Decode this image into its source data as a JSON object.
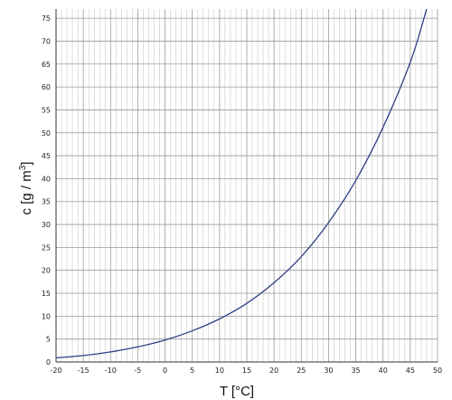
{
  "chart_data": {
    "type": "line",
    "title": "",
    "xlabel": "T [°C]",
    "ylabel_base": "c [g / m",
    "ylabel_sup": "3",
    "ylabel_close": "]",
    "xlim": [
      -20,
      50
    ],
    "ylim": [
      0,
      77
    ],
    "x_ticks": [
      -20,
      -15,
      -10,
      -5,
      0,
      5,
      10,
      15,
      20,
      25,
      30,
      35,
      40,
      45,
      50
    ],
    "y_ticks": [
      0,
      5,
      10,
      15,
      20,
      25,
      30,
      35,
      40,
      45,
      50,
      55,
      60,
      65,
      70,
      75
    ],
    "grid": true,
    "legend": "none",
    "colors": {
      "line": "#2f3f86",
      "grid_major": "#9a9a9a",
      "grid_minor": "#c8c8c8",
      "axis": "#333333"
    },
    "series": [
      {
        "x": [
          -20,
          -15,
          -10,
          -5,
          0,
          5,
          10,
          15,
          20,
          25,
          30,
          35,
          40,
          45,
          48
        ],
        "values": [
          0.9,
          1.4,
          2.2,
          3.3,
          4.8,
          6.8,
          9.4,
          12.8,
          17.3,
          23.0,
          30.4,
          39.6,
          51.2,
          65.4,
          77.0
        ]
      }
    ]
  }
}
